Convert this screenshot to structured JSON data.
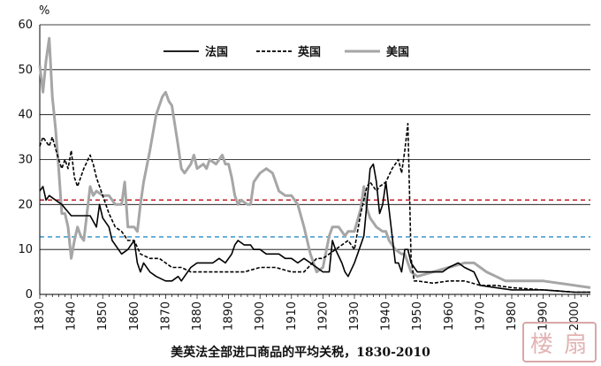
{
  "chart_data": {
    "type": "line",
    "title": "美英法全部进口商品的平均关税，1830-2010",
    "ylabel": "%",
    "xlabel": "",
    "xlim": [
      1830,
      2005
    ],
    "ylim": [
      0,
      60
    ],
    "yticks": [
      0,
      10,
      20,
      30,
      40,
      50,
      60
    ],
    "xticks": [
      1830,
      1840,
      1850,
      1860,
      1870,
      1880,
      1890,
      1900,
      1910,
      1920,
      1930,
      1940,
      1950,
      1960,
      1970,
      1980,
      1990,
      2000
    ],
    "grid": "horizontal",
    "legend_position": "top",
    "reference_lines": [
      {
        "y": 21,
        "color": "#c0202a",
        "style": "dashed"
      },
      {
        "y": 12.8,
        "color": "#4a9fd0",
        "style": "dashed"
      }
    ],
    "series": [
      {
        "name": "法国",
        "color": "#000000",
        "style": "solid",
        "points": [
          [
            1830,
            23
          ],
          [
            1831,
            24
          ],
          [
            1832,
            21
          ],
          [
            1833,
            22
          ],
          [
            1835,
            21
          ],
          [
            1837,
            20
          ],
          [
            1840,
            17.5
          ],
          [
            1843,
            17.5
          ],
          [
            1846,
            17.5
          ],
          [
            1848,
            15
          ],
          [
            1849,
            20
          ],
          [
            1850,
            17
          ],
          [
            1852,
            15
          ],
          [
            1853,
            12
          ],
          [
            1855,
            10
          ],
          [
            1856,
            9
          ],
          [
            1858,
            10
          ],
          [
            1860,
            12
          ],
          [
            1861,
            7
          ],
          [
            1862,
            5
          ],
          [
            1863,
            7
          ],
          [
            1865,
            5
          ],
          [
            1867,
            4
          ],
          [
            1870,
            3
          ],
          [
            1872,
            3
          ],
          [
            1874,
            4
          ],
          [
            1875,
            3
          ],
          [
            1877,
            5
          ],
          [
            1878,
            6
          ],
          [
            1880,
            7
          ],
          [
            1882,
            7
          ],
          [
            1885,
            7
          ],
          [
            1887,
            8
          ],
          [
            1889,
            7
          ],
          [
            1891,
            9
          ],
          [
            1892,
            11
          ],
          [
            1893,
            12
          ],
          [
            1895,
            11
          ],
          [
            1897,
            11
          ],
          [
            1898,
            10
          ],
          [
            1900,
            10
          ],
          [
            1902,
            9
          ],
          [
            1904,
            9
          ],
          [
            1906,
            9
          ],
          [
            1908,
            8
          ],
          [
            1910,
            8
          ],
          [
            1912,
            7
          ],
          [
            1914,
            8
          ],
          [
            1916,
            7
          ],
          [
            1918,
            6
          ],
          [
            1920,
            5
          ],
          [
            1922,
            5
          ],
          [
            1923,
            12
          ],
          [
            1924,
            10
          ],
          [
            1926,
            7
          ],
          [
            1927,
            5
          ],
          [
            1928,
            4
          ],
          [
            1930,
            7
          ],
          [
            1931,
            9
          ],
          [
            1933,
            13
          ],
          [
            1935,
            28
          ],
          [
            1936,
            29
          ],
          [
            1937,
            25
          ],
          [
            1938,
            18
          ],
          [
            1939,
            20
          ],
          [
            1940,
            25
          ],
          [
            1942,
            13
          ],
          [
            1943,
            7
          ],
          [
            1944,
            7
          ],
          [
            1945,
            5
          ],
          [
            1946,
            10
          ],
          [
            1947,
            10
          ],
          [
            1948,
            7
          ],
          [
            1950,
            5
          ],
          [
            1952,
            5
          ],
          [
            1955,
            5
          ],
          [
            1958,
            5
          ],
          [
            1960,
            6
          ],
          [
            1963,
            7
          ],
          [
            1965,
            6
          ],
          [
            1968,
            5
          ],
          [
            1970,
            2
          ],
          [
            1975,
            1.5
          ],
          [
            1980,
            1
          ],
          [
            1990,
            1
          ],
          [
            2000,
            0.5
          ],
          [
            2005,
            0.5
          ]
        ]
      },
      {
        "name": "英国",
        "color": "#000000",
        "style": "dashed",
        "points": [
          [
            1830,
            33
          ],
          [
            1831,
            35
          ],
          [
            1832,
            34
          ],
          [
            1833,
            33
          ],
          [
            1834,
            35
          ],
          [
            1836,
            30
          ],
          [
            1837,
            28
          ],
          [
            1838,
            30
          ],
          [
            1839,
            28
          ],
          [
            1840,
            32
          ],
          [
            1841,
            26
          ],
          [
            1842,
            24
          ],
          [
            1844,
            28
          ],
          [
            1846,
            31
          ],
          [
            1847,
            29
          ],
          [
            1848,
            26
          ],
          [
            1850,
            22
          ],
          [
            1852,
            18
          ],
          [
            1854,
            15
          ],
          [
            1856,
            14
          ],
          [
            1858,
            12
          ],
          [
            1860,
            12
          ],
          [
            1862,
            9
          ],
          [
            1865,
            8
          ],
          [
            1868,
            8
          ],
          [
            1870,
            7
          ],
          [
            1872,
            6
          ],
          [
            1875,
            6
          ],
          [
            1878,
            5
          ],
          [
            1880,
            5
          ],
          [
            1885,
            5
          ],
          [
            1890,
            5
          ],
          [
            1895,
            5
          ],
          [
            1900,
            6
          ],
          [
            1905,
            6
          ],
          [
            1910,
            5
          ],
          [
            1914,
            5
          ],
          [
            1918,
            8
          ],
          [
            1920,
            8
          ],
          [
            1922,
            9
          ],
          [
            1924,
            10
          ],
          [
            1926,
            11
          ],
          [
            1928,
            12
          ],
          [
            1930,
            10
          ],
          [
            1932,
            18
          ],
          [
            1934,
            24
          ],
          [
            1935,
            25
          ],
          [
            1936,
            24
          ],
          [
            1937,
            23
          ],
          [
            1938,
            24
          ],
          [
            1940,
            25
          ],
          [
            1942,
            28
          ],
          [
            1944,
            30
          ],
          [
            1945,
            27
          ],
          [
            1946,
            32
          ],
          [
            1947,
            38
          ],
          [
            1948,
            8
          ],
          [
            1949,
            3
          ],
          [
            1950,
            3
          ],
          [
            1955,
            2.5
          ],
          [
            1960,
            3
          ],
          [
            1965,
            3
          ],
          [
            1970,
            2
          ],
          [
            1975,
            2
          ],
          [
            1980,
            1.5
          ],
          [
            1990,
            1
          ],
          [
            2000,
            0.5
          ],
          [
            2005,
            0.5
          ]
        ]
      },
      {
        "name": "美国",
        "color": "#a6a6a6",
        "style": "solid",
        "points": [
          [
            1830,
            51
          ],
          [
            1831,
            45
          ],
          [
            1832,
            52
          ],
          [
            1833,
            57
          ],
          [
            1834,
            44
          ],
          [
            1835,
            37
          ],
          [
            1836,
            28
          ],
          [
            1837,
            18
          ],
          [
            1838,
            18
          ],
          [
            1839,
            15
          ],
          [
            1840,
            8
          ],
          [
            1841,
            12
          ],
          [
            1842,
            15
          ],
          [
            1843,
            13
          ],
          [
            1844,
            12
          ],
          [
            1846,
            24
          ],
          [
            1847,
            22
          ],
          [
            1848,
            23
          ],
          [
            1850,
            22
          ],
          [
            1852,
            22
          ],
          [
            1854,
            20
          ],
          [
            1856,
            20
          ],
          [
            1857,
            25
          ],
          [
            1858,
            15
          ],
          [
            1860,
            15
          ],
          [
            1861,
            14
          ],
          [
            1862,
            20
          ],
          [
            1863,
            25
          ],
          [
            1865,
            32
          ],
          [
            1867,
            40
          ],
          [
            1869,
            44
          ],
          [
            1870,
            45
          ],
          [
            1871,
            43
          ],
          [
            1872,
            42
          ],
          [
            1874,
            33
          ],
          [
            1875,
            28
          ],
          [
            1876,
            27
          ],
          [
            1878,
            29
          ],
          [
            1879,
            31
          ],
          [
            1880,
            28
          ],
          [
            1882,
            29
          ],
          [
            1883,
            28
          ],
          [
            1884,
            30
          ],
          [
            1886,
            29
          ],
          [
            1888,
            31
          ],
          [
            1889,
            29
          ],
          [
            1890,
            29
          ],
          [
            1891,
            26
          ],
          [
            1892,
            22
          ],
          [
            1893,
            20
          ],
          [
            1894,
            21
          ],
          [
            1896,
            20
          ],
          [
            1897,
            20
          ],
          [
            1898,
            25
          ],
          [
            1900,
            27
          ],
          [
            1902,
            28
          ],
          [
            1904,
            27
          ],
          [
            1906,
            23
          ],
          [
            1908,
            22
          ],
          [
            1910,
            22
          ],
          [
            1912,
            20
          ],
          [
            1914,
            15
          ],
          [
            1916,
            9
          ],
          [
            1918,
            5
          ],
          [
            1920,
            6
          ],
          [
            1922,
            13
          ],
          [
            1923,
            15
          ],
          [
            1925,
            15
          ],
          [
            1927,
            13
          ],
          [
            1928,
            14
          ],
          [
            1930,
            14
          ],
          [
            1932,
            19
          ],
          [
            1933,
            24
          ],
          [
            1934,
            19
          ],
          [
            1935,
            17
          ],
          [
            1937,
            15
          ],
          [
            1939,
            14
          ],
          [
            1940,
            14
          ],
          [
            1941,
            12
          ],
          [
            1943,
            10
          ],
          [
            1945,
            9
          ],
          [
            1946,
            9
          ],
          [
            1947,
            7
          ],
          [
            1948,
            5
          ],
          [
            1950,
            4
          ],
          [
            1955,
            5
          ],
          [
            1960,
            6
          ],
          [
            1965,
            7
          ],
          [
            1968,
            7
          ],
          [
            1970,
            6
          ],
          [
            1972,
            5
          ],
          [
            1975,
            4
          ],
          [
            1978,
            3
          ],
          [
            1980,
            3
          ],
          [
            1985,
            3
          ],
          [
            1990,
            3
          ],
          [
            1995,
            2.5
          ],
          [
            2000,
            2
          ],
          [
            2005,
            1.5
          ]
        ]
      }
    ]
  },
  "caption": "美英法全部进口商品的平均关税，1830-2010",
  "watermark": "楼 扇"
}
